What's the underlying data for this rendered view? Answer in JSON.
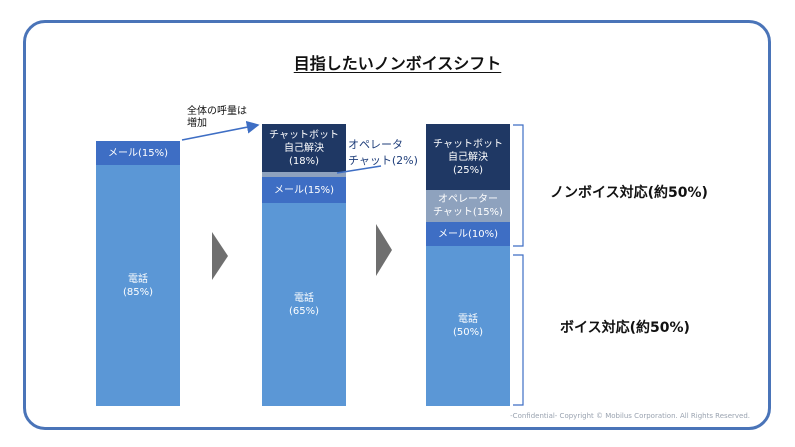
{
  "title": "目指したいノンボイスシフト",
  "bars": [
    {
      "segments": [
        {
          "id": "mail",
          "text": "メール(15%)",
          "color": "#3e6ec4"
        },
        {
          "id": "phone",
          "text": "電話\n(85%)",
          "color": "#5b97d6"
        }
      ]
    },
    {
      "segments": [
        {
          "id": "chatbot",
          "text": "チャットボット\n自己解決\n(18%)",
          "color": "#1f3864"
        },
        {
          "id": "operator",
          "text": "",
          "color": "#8ea2be"
        },
        {
          "id": "mail",
          "text": "メール(15%)",
          "color": "#3e6ec4"
        },
        {
          "id": "phone",
          "text": "電話\n(65%)",
          "color": "#5b97d6"
        }
      ]
    },
    {
      "segments": [
        {
          "id": "chatbot",
          "text": "チャットボット\n自己解決\n(25%)",
          "color": "#1f3864"
        },
        {
          "id": "operator",
          "text": "オペレーター\nチャット(15%)",
          "color": "#8ea2be"
        },
        {
          "id": "mail",
          "text": "メール(10%)",
          "color": "#3e6ec4"
        },
        {
          "id": "phone",
          "text": "電話\n(50%)",
          "color": "#5b97d6"
        }
      ]
    }
  ],
  "annotations": {
    "total_increase": "全体の呼量は\n増加",
    "operator_chat": "オペレータ\nチャット(2%)"
  },
  "groups": {
    "nonvoice": "ノンボイス対応(約50%)",
    "voice": "ボイス対応(約50%)"
  },
  "footer": "-Confidential-  Copyright © Mobilus Corporation. All Rights Reserved."
}
